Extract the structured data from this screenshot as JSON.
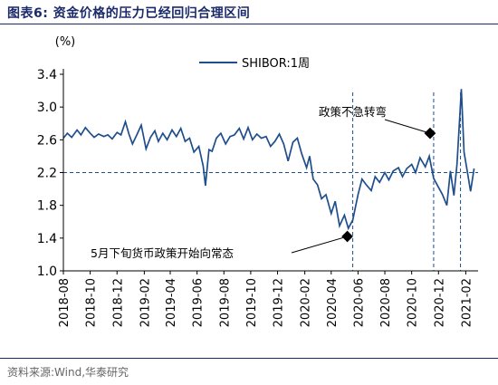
{
  "figure_title": "图表6:  资金价格的压力已经回归合理区间",
  "source": "资料来源:Wind,华泰研究",
  "colors": {
    "series": "#1f4e8c",
    "axis": "#000000",
    "title": "#1b2a6b",
    "reference": "#1f4e8c"
  },
  "chart_data": {
    "type": "line",
    "ylabel": "(%)",
    "ylim": [
      1.0,
      3.4
    ],
    "yticks": [
      "1.0",
      "1.4",
      "1.8",
      "2.2",
      "2.6",
      "3.0",
      "3.4"
    ],
    "xlim": [
      "2018-08-01",
      "2021-03-01"
    ],
    "xticks": [
      "2018-08",
      "2018-10",
      "2018-12",
      "2019-02",
      "2019-04",
      "2019-06",
      "2019-08",
      "2019-10",
      "2019-12",
      "2020-02",
      "2020-04",
      "2020-06",
      "2020-08",
      "2020-10",
      "2020-12",
      "2021-02"
    ],
    "legend": {
      "position": "top-center"
    },
    "grid": false,
    "reference_lines": {
      "horizontal": 2.2,
      "vertical": [
        "2020-05-20",
        "2020-11-20",
        "2021-01-20"
      ]
    },
    "annotations": [
      {
        "text": "政策不急转弯",
        "x": "2020-11-20",
        "y": 2.68
      },
      {
        "text": "5月下旬货币政策开始向常态",
        "x": "2020-05-20",
        "y": 1.42
      }
    ],
    "series": [
      {
        "name": "SHIBOR:1周",
        "points": [
          [
            "2018-08-01",
            2.62
          ],
          [
            "2018-08-10",
            2.68
          ],
          [
            "2018-08-20",
            2.63
          ],
          [
            "2018-09-01",
            2.72
          ],
          [
            "2018-09-10",
            2.66
          ],
          [
            "2018-09-20",
            2.75
          ],
          [
            "2018-10-01",
            2.68
          ],
          [
            "2018-10-10",
            2.63
          ],
          [
            "2018-10-20",
            2.67
          ],
          [
            "2018-11-01",
            2.64
          ],
          [
            "2018-11-10",
            2.66
          ],
          [
            "2018-11-20",
            2.61
          ],
          [
            "2018-12-01",
            2.69
          ],
          [
            "2018-12-10",
            2.66
          ],
          [
            "2018-12-20",
            2.82
          ],
          [
            "2018-12-28",
            2.67
          ],
          [
            "2019-01-05",
            2.55
          ],
          [
            "2019-01-15",
            2.66
          ],
          [
            "2019-01-25",
            2.78
          ],
          [
            "2019-02-05",
            2.49
          ],
          [
            "2019-02-15",
            2.63
          ],
          [
            "2019-02-25",
            2.71
          ],
          [
            "2019-03-05",
            2.58
          ],
          [
            "2019-03-15",
            2.68
          ],
          [
            "2019-03-25",
            2.6
          ],
          [
            "2019-04-05",
            2.72
          ],
          [
            "2019-04-15",
            2.64
          ],
          [
            "2019-04-25",
            2.74
          ],
          [
            "2019-05-05",
            2.58
          ],
          [
            "2019-05-15",
            2.62
          ],
          [
            "2019-05-25",
            2.45
          ],
          [
            "2019-06-05",
            2.52
          ],
          [
            "2019-06-15",
            2.28
          ],
          [
            "2019-06-20",
            2.04
          ],
          [
            "2019-06-28",
            2.48
          ],
          [
            "2019-07-05",
            2.46
          ],
          [
            "2019-07-15",
            2.62
          ],
          [
            "2019-07-25",
            2.68
          ],
          [
            "2019-08-05",
            2.55
          ],
          [
            "2019-08-15",
            2.64
          ],
          [
            "2019-08-25",
            2.66
          ],
          [
            "2019-09-05",
            2.74
          ],
          [
            "2019-09-15",
            2.61
          ],
          [
            "2019-09-25",
            2.75
          ],
          [
            "2019-10-05",
            2.6
          ],
          [
            "2019-10-15",
            2.67
          ],
          [
            "2019-10-25",
            2.62
          ],
          [
            "2019-11-05",
            2.64
          ],
          [
            "2019-11-15",
            2.52
          ],
          [
            "2019-11-25",
            2.58
          ],
          [
            "2019-12-05",
            2.67
          ],
          [
            "2019-12-15",
            2.55
          ],
          [
            "2019-12-25",
            2.34
          ],
          [
            "2020-01-05",
            2.57
          ],
          [
            "2020-01-15",
            2.62
          ],
          [
            "2020-01-25",
            2.43
          ],
          [
            "2020-02-05",
            2.26
          ],
          [
            "2020-02-12",
            2.4
          ],
          [
            "2020-02-20",
            2.12
          ],
          [
            "2020-03-01",
            2.05
          ],
          [
            "2020-03-10",
            1.88
          ],
          [
            "2020-03-20",
            1.93
          ],
          [
            "2020-04-01",
            1.7
          ],
          [
            "2020-04-10",
            1.85
          ],
          [
            "2020-04-20",
            1.55
          ],
          [
            "2020-05-01",
            1.68
          ],
          [
            "2020-05-10",
            1.52
          ],
          [
            "2020-05-20",
            1.62
          ],
          [
            "2020-06-01",
            1.93
          ],
          [
            "2020-06-10",
            2.12
          ],
          [
            "2020-06-20",
            2.05
          ],
          [
            "2020-07-01",
            1.98
          ],
          [
            "2020-07-10",
            2.15
          ],
          [
            "2020-07-20",
            2.08
          ],
          [
            "2020-08-01",
            2.2
          ],
          [
            "2020-08-10",
            2.11
          ],
          [
            "2020-08-20",
            2.22
          ],
          [
            "2020-09-01",
            2.26
          ],
          [
            "2020-09-10",
            2.15
          ],
          [
            "2020-09-20",
            2.25
          ],
          [
            "2020-10-01",
            2.3
          ],
          [
            "2020-10-10",
            2.2
          ],
          [
            "2020-10-20",
            2.38
          ],
          [
            "2020-11-01",
            2.27
          ],
          [
            "2020-11-10",
            2.4
          ],
          [
            "2020-11-20",
            2.13
          ],
          [
            "2020-12-01",
            2.02
          ],
          [
            "2020-12-10",
            1.93
          ],
          [
            "2020-12-20",
            1.8
          ],
          [
            "2020-12-28",
            2.22
          ],
          [
            "2021-01-05",
            1.92
          ],
          [
            "2021-01-12",
            2.3
          ],
          [
            "2021-01-18",
            2.85
          ],
          [
            "2021-01-22",
            3.22
          ],
          [
            "2021-01-28",
            2.45
          ],
          [
            "2021-02-05",
            2.2
          ],
          [
            "2021-02-12",
            1.97
          ],
          [
            "2021-02-20",
            2.25
          ]
        ]
      }
    ]
  }
}
